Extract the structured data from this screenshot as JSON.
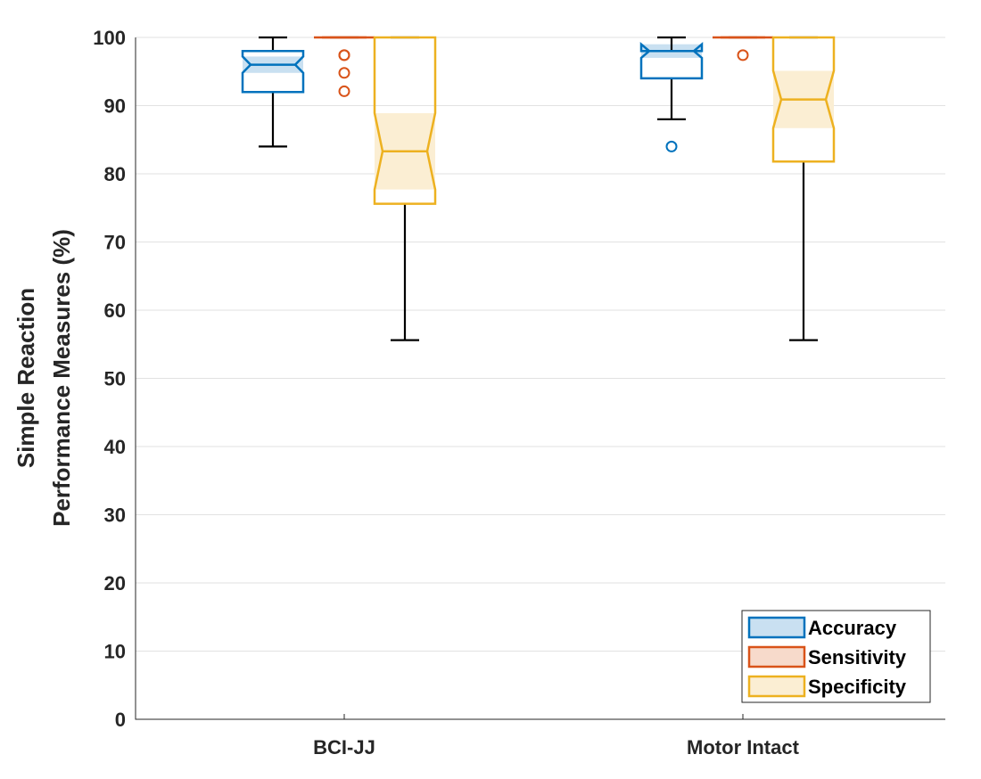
{
  "chart_data": {
    "type": "boxplot",
    "notched": true,
    "title": "",
    "xlabel": "",
    "ylabel_lines": [
      "Simple Reaction",
      "Performance Measures (%)"
    ],
    "ylim": [
      0,
      100
    ],
    "yticks": [
      0,
      10,
      20,
      30,
      40,
      50,
      60,
      70,
      80,
      90,
      100
    ],
    "grid": "y",
    "categories": [
      "BCI-JJ",
      "Motor Intact"
    ],
    "legend_position": "bottom-right",
    "series": [
      {
        "name": "Accuracy",
        "color": "#0072BD",
        "fill": "#C9E0F1",
        "boxes": [
          {
            "whisker_low": 84,
            "q1": 92,
            "median": 96,
            "q3": 98,
            "whisker_high": 100,
            "notch_low": 94.8,
            "notch_high": 97.2,
            "outliers": []
          },
          {
            "whisker_low": 88,
            "q1": 94,
            "median": 98,
            "q3": 98,
            "whisker_high": 100,
            "notch_low": 97.0,
            "notch_high": 99.0,
            "outliers": [
              84
            ]
          }
        ]
      },
      {
        "name": "Sensitivity",
        "color": "#D95319",
        "fill": "#F7DACB",
        "boxes": [
          {
            "whisker_low": 100,
            "q1": 100,
            "median": 100,
            "q3": 100,
            "whisker_high": 100,
            "notch_low": 100,
            "notch_high": 100,
            "outliers": [
              97.4,
              97.4,
              94.8,
              92.1
            ]
          },
          {
            "whisker_low": 100,
            "q1": 100,
            "median": 100,
            "q3": 100,
            "whisker_high": 100,
            "notch_low": 100,
            "notch_high": 100,
            "outliers": [
              97.4
            ]
          }
        ]
      },
      {
        "name": "Specificity",
        "color": "#EDB120",
        "fill": "#FBEED3",
        "boxes": [
          {
            "whisker_low": 55.6,
            "q1": 75.6,
            "median": 83.3,
            "q3": 100,
            "whisker_high": 100,
            "notch_low": 77.7,
            "notch_high": 88.9,
            "outliers": []
          },
          {
            "whisker_low": 55.6,
            "q1": 81.8,
            "median": 90.9,
            "q3": 100,
            "whisker_high": 100,
            "notch_low": 86.7,
            "notch_high": 95.1,
            "outliers": []
          }
        ]
      }
    ]
  }
}
